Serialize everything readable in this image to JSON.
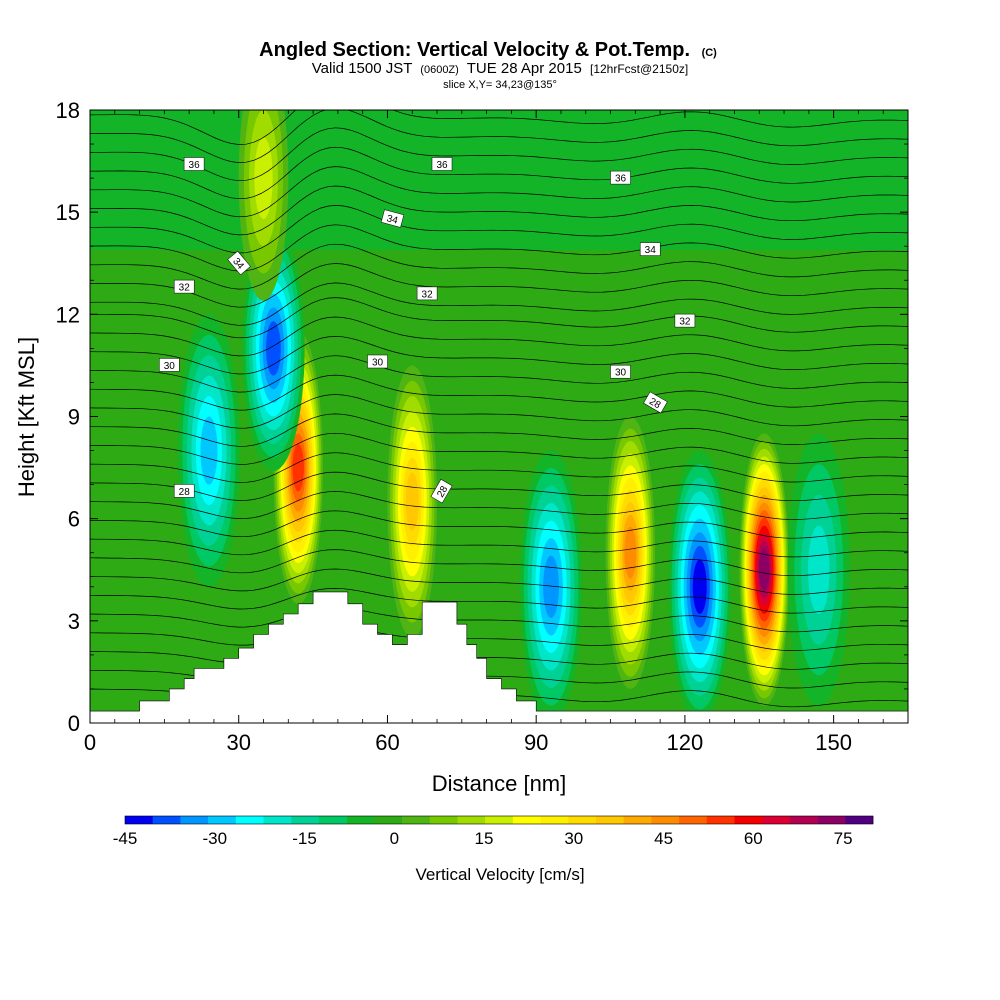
{
  "chart_data": {
    "type": "heatmap",
    "title": "Angled Section: Vertical Velocity & Pot.Temp.",
    "title_suffix": "(C)",
    "subtitle_valid": "Valid 1500 JST",
    "subtitle_utc": "(0600Z)",
    "subtitle_date": "TUE 28 Apr 2015",
    "subtitle_fcst": "[12hrFcst@2150z]",
    "subtitle_slice": "slice X,Y= 34,23@135°",
    "xlabel": "Distance [nm]",
    "ylabel": "Height [Kft MSL]",
    "xlim": [
      0,
      165
    ],
    "ylim": [
      0,
      18
    ],
    "x_ticks": [
      "0",
      "30",
      "60",
      "90",
      "120",
      "150"
    ],
    "y_ticks": [
      "0",
      "3",
      "6",
      "9",
      "12",
      "15",
      "18"
    ],
    "colorbar": {
      "title": "Vertical Velocity [cm/s]",
      "min": -45,
      "max": 80,
      "step": 5,
      "tick_labels": [
        "-45",
        "-30",
        "-15",
        "0",
        "15",
        "30",
        "45",
        "60",
        "75"
      ],
      "colors": [
        "#0000f0",
        "#0050ff",
        "#0096ff",
        "#00c8ff",
        "#00ffff",
        "#00e6c8",
        "#00d296",
        "#00c864",
        "#14b428",
        "#2daa14",
        "#50b414",
        "#78c800",
        "#a0dc00",
        "#c8f000",
        "#ffff00",
        "#fff000",
        "#ffdc00",
        "#ffc800",
        "#ffaa00",
        "#ff8c00",
        "#ff6400",
        "#ff3200",
        "#f50000",
        "#dc0032",
        "#b40050",
        "#8c0064",
        "#500080"
      ]
    },
    "features": [
      {
        "x": 42,
        "z": 7.5,
        "w": 61,
        "kind": "updraft"
      },
      {
        "x": 37,
        "z": 11,
        "w": -40,
        "kind": "downdraft"
      },
      {
        "x": 24,
        "z": 8,
        "w": -30,
        "kind": "downdraft"
      },
      {
        "x": 65,
        "z": 6.5,
        "w": 42,
        "kind": "updraft"
      },
      {
        "x": 93,
        "z": 4,
        "w": -35,
        "kind": "downdraft"
      },
      {
        "x": 109,
        "z": 5,
        "w": 50,
        "kind": "updraft"
      },
      {
        "x": 123,
        "z": 4,
        "w": -45,
        "kind": "downdraft"
      },
      {
        "x": 136,
        "z": 4.5,
        "w": 80,
        "kind": "updraft"
      },
      {
        "x": 147,
        "z": 4.5,
        "w": -18,
        "kind": "downdraft"
      },
      {
        "x": 35,
        "z": 16,
        "w": 22,
        "kind": "updraft"
      }
    ],
    "terrain": [
      [
        0,
        0.35
      ],
      [
        10,
        0.35
      ],
      [
        10,
        0.65
      ],
      [
        16,
        0.65
      ],
      [
        16,
        1.0
      ],
      [
        19,
        1.0
      ],
      [
        19,
        1.3
      ],
      [
        21,
        1.3
      ],
      [
        21,
        1.6
      ],
      [
        27,
        1.6
      ],
      [
        27,
        1.9
      ],
      [
        30,
        1.9
      ],
      [
        30,
        2.2
      ],
      [
        33,
        2.2
      ],
      [
        33,
        2.6
      ],
      [
        36,
        2.6
      ],
      [
        36,
        2.9
      ],
      [
        39,
        2.9
      ],
      [
        39,
        3.2
      ],
      [
        42,
        3.2
      ],
      [
        42,
        3.5
      ],
      [
        45,
        3.5
      ],
      [
        45,
        3.85
      ],
      [
        52,
        3.85
      ],
      [
        52,
        3.5
      ],
      [
        55,
        3.5
      ],
      [
        55,
        2.9
      ],
      [
        58,
        2.9
      ],
      [
        58,
        2.6
      ],
      [
        61,
        2.6
      ],
      [
        61,
        2.3
      ],
      [
        64,
        2.3
      ],
      [
        64,
        2.6
      ],
      [
        67,
        2.6
      ],
      [
        67,
        3.55
      ],
      [
        74,
        3.55
      ],
      [
        74,
        2.9
      ],
      [
        76,
        2.9
      ],
      [
        76,
        2.3
      ],
      [
        78,
        2.3
      ],
      [
        78,
        1.9
      ],
      [
        80,
        1.9
      ],
      [
        80,
        1.3
      ],
      [
        83,
        1.3
      ],
      [
        83,
        1.0
      ],
      [
        86,
        1.0
      ],
      [
        86,
        0.65
      ],
      [
        90,
        0.65
      ],
      [
        90,
        0.35
      ],
      [
        165,
        0.35
      ]
    ],
    "theta_labels": [
      {
        "x": 21,
        "z": 16.4,
        "text": "36",
        "rot": 0
      },
      {
        "x": 71,
        "z": 16.4,
        "text": "36",
        "rot": 0
      },
      {
        "x": 107,
        "z": 16.0,
        "text": "36",
        "rot": 0
      },
      {
        "x": 61,
        "z": 14.8,
        "text": "34",
        "rot": 15
      },
      {
        "x": 113,
        "z": 13.9,
        "text": "34",
        "rot": 0
      },
      {
        "x": 30,
        "z": 13.5,
        "text": "34",
        "rot": 50
      },
      {
        "x": 19,
        "z": 12.8,
        "text": "32",
        "rot": 0
      },
      {
        "x": 68,
        "z": 12.6,
        "text": "32",
        "rot": 0
      },
      {
        "x": 120,
        "z": 11.8,
        "text": "32",
        "rot": 0
      },
      {
        "x": 16,
        "z": 10.5,
        "text": "30",
        "rot": 0
      },
      {
        "x": 58,
        "z": 10.6,
        "text": "30",
        "rot": 0
      },
      {
        "x": 107,
        "z": 10.3,
        "text": "30",
        "rot": 0
      },
      {
        "x": 114,
        "z": 9.4,
        "text": "28",
        "rot": 30
      },
      {
        "x": 19,
        "z": 6.8,
        "text": "28",
        "rot": 0
      },
      {
        "x": 71,
        "z": 6.8,
        "text": "28",
        "rot": -60
      }
    ]
  }
}
